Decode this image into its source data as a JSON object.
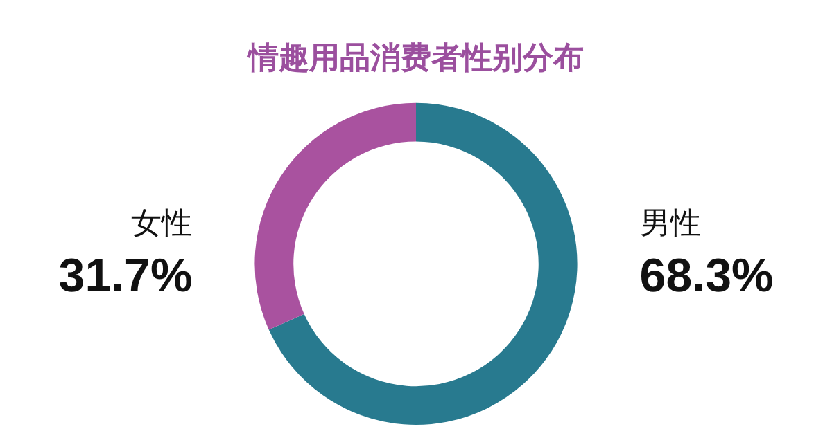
{
  "chart_data": {
    "type": "donut",
    "title": "情趣用品消费者性别分布",
    "categories": [
      "男性",
      "女性"
    ],
    "values": [
      68.3,
      31.7
    ],
    "colors": [
      "#287a8f",
      "#a9529f"
    ],
    "value_labels": [
      "68.3%",
      "31.7%"
    ]
  }
}
